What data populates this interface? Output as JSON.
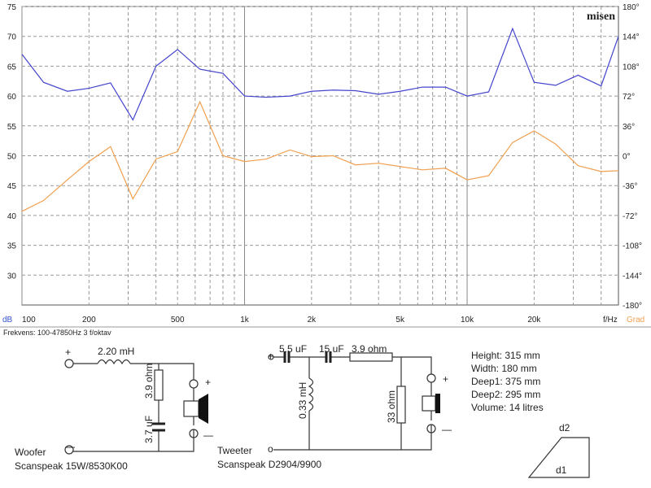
{
  "chart_data": {
    "type": "line",
    "brand": "misen",
    "footer": "Frekvens: 100-47850Hz  3 f/oktav",
    "ylabel": "dB",
    "y2label": "Grad",
    "xlabel": "f/Hz",
    "xscale": "log",
    "xlim": [
      100,
      47850
    ],
    "xticks": [
      100,
      200,
      500,
      {
        "value": 1000,
        "label": "1k"
      },
      {
        "value": 2000,
        "label": "2k"
      },
      {
        "value": 5000,
        "label": "5k"
      },
      {
        "value": 10000,
        "label": "10k"
      },
      {
        "value": 20000,
        "label": "20k"
      }
    ],
    "xgrid": [
      100,
      200,
      300,
      400,
      500,
      600,
      700,
      800,
      900,
      1000,
      2000,
      3000,
      4000,
      5000,
      6000,
      7000,
      8000,
      9000,
      10000,
      20000,
      30000,
      40000
    ],
    "ylim": [
      25,
      75
    ],
    "yticks": [
      30,
      35,
      40,
      45,
      50,
      55,
      60,
      65,
      70,
      75
    ],
    "y2lim": [
      -180,
      180
    ],
    "y2ticks": [
      {
        "value": 180,
        "label": "180°"
      },
      {
        "value": 144,
        "label": "144°"
      },
      {
        "value": 108,
        "label": "108°"
      },
      {
        "value": 72,
        "label": "72°"
      },
      {
        "value": 36,
        "label": "36°"
      },
      {
        "value": 0,
        "label": "0°"
      },
      {
        "value": -36,
        "label": "-36°"
      },
      {
        "value": -72,
        "label": "-72°"
      },
      {
        "value": -108,
        "label": "-108°"
      },
      {
        "value": -144,
        "label": "-144°"
      },
      {
        "value": -180,
        "label": "-180°"
      }
    ],
    "grid": true,
    "x": [
      100,
      125,
      160,
      200,
      250,
      315,
      400,
      500,
      630,
      800,
      1000,
      1250,
      1600,
      2000,
      2500,
      3150,
      4000,
      5000,
      6300,
      8000,
      10000,
      12500,
      16000,
      20000,
      25000,
      31500,
      40000,
      47850
    ],
    "series": [
      {
        "color": "#4444cc",
        "values": [
          67,
          62.3,
          60.8,
          61.3,
          62.2,
          56,
          65,
          67.8,
          64.5,
          63.8,
          60,
          59.8,
          60,
          60.8,
          61,
          60.9,
          60.3,
          60.8,
          61.5,
          61.5,
          60,
          60.7,
          71.3,
          62.3,
          61.8,
          63.5,
          61.7,
          70
        ]
      },
      {
        "color": "#f0a050",
        "axis": "y2",
        "values": [
          -67,
          -54,
          -29,
          -7,
          11,
          -52,
          -4,
          5,
          65,
          0,
          -7,
          -4,
          7,
          -1,
          0,
          -11,
          -9,
          -13,
          -17,
          -15,
          -29,
          -24,
          16,
          30,
          14,
          -12,
          -19,
          -18
        ]
      }
    ]
  },
  "schematic": {
    "woofer": {
      "title": "Woofer",
      "model": "Scanspeak 15W/8530K00",
      "plus": "+",
      "minus": "—",
      "inductor": "2.20 mH",
      "resistor": "3.9 ohm",
      "capacitor": "3.7 uF",
      "spk_plus": "+",
      "spk_minus": "—"
    },
    "tweeter": {
      "title": "Tweeter",
      "model": "Scanspeak D2904/9900",
      "plus": "+",
      "minus": "o",
      "cap1": "5.5 uF",
      "cap2": "15 uF",
      "resistor": "3.9 ohm",
      "inductor": "0.33 mH",
      "shunt": "33 ohm",
      "spk_plus": "+",
      "spk_minus": "—"
    },
    "specs": [
      "Height: 315 mm",
      "Width: 180 mm",
      "Deep1: 375 mm",
      "Deep2: 295 mm",
      "Volume: 14 litres"
    ],
    "box": {
      "top": "d2",
      "bottom": "d1"
    }
  }
}
